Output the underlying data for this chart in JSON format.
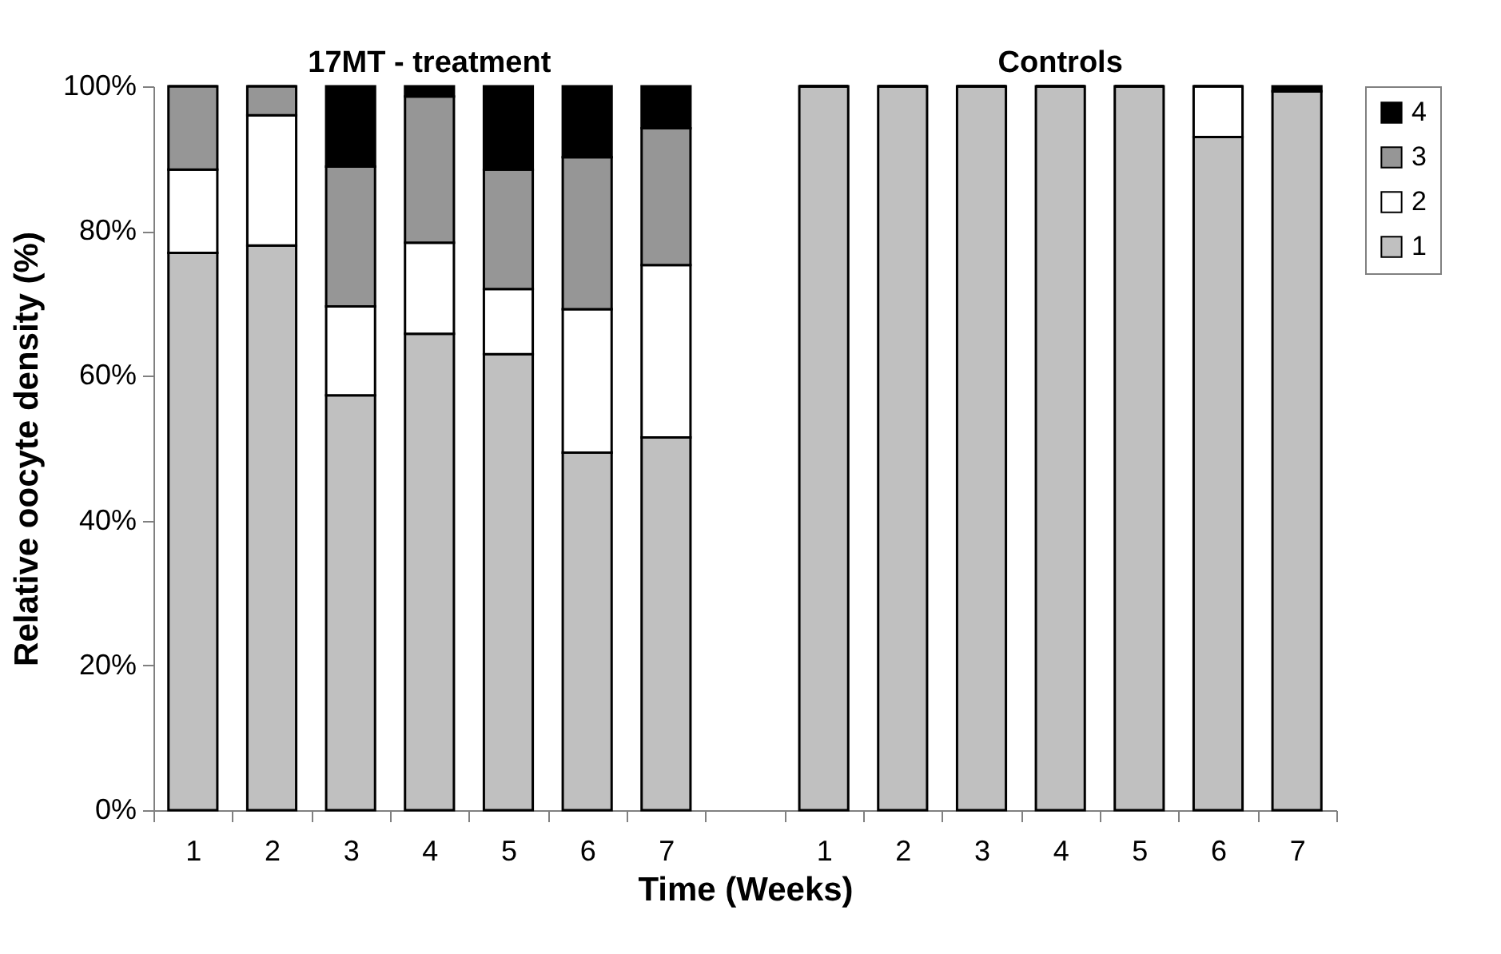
{
  "chart_data": {
    "type": "bar",
    "stacked": true,
    "ylabel": "Relative oocyte density (%)",
    "xlabel": "Time (Weeks)",
    "categories": [
      "1",
      "2",
      "3",
      "4",
      "5",
      "6",
      "7",
      null,
      "1",
      "2",
      "3",
      "4",
      "5",
      "6",
      "7"
    ],
    "series": [
      {
        "name": "1",
        "color": "#c0c0c0",
        "values": [
          77,
          78,
          57.3,
          65.8,
          63,
          49.4,
          51.5,
          null,
          100,
          100,
          100,
          100,
          100,
          93,
          99.3
        ]
      },
      {
        "name": "2",
        "color": "#ffffff",
        "values": [
          11.5,
          18,
          12.3,
          12.6,
          9,
          19.8,
          23.8,
          null,
          0,
          0,
          0,
          0,
          0,
          7,
          0
        ]
      },
      {
        "name": "3",
        "color": "#969696",
        "values": [
          11.5,
          4,
          19.3,
          20.2,
          16.5,
          21,
          18.9,
          null,
          0,
          0,
          0,
          0,
          0,
          0,
          0
        ]
      },
      {
        "name": "4",
        "color": "#000000",
        "values": [
          0,
          0,
          11.1,
          1.4,
          11.5,
          9.8,
          5.8,
          null,
          0,
          0,
          0,
          0,
          0,
          0,
          0.7
        ]
      }
    ],
    "ylim": [
      0,
      100
    ],
    "yticks": [
      {
        "value": 0,
        "label": "0%"
      },
      {
        "value": 20,
        "label": "20%"
      },
      {
        "value": 40,
        "label": "40%"
      },
      {
        "value": 60,
        "label": "60%"
      },
      {
        "value": 80,
        "label": "80%"
      },
      {
        "value": 100,
        "label": "100%"
      }
    ],
    "annotations": [
      "17MT - treatment",
      "Controls"
    ],
    "legend": "right",
    "grid": false
  }
}
